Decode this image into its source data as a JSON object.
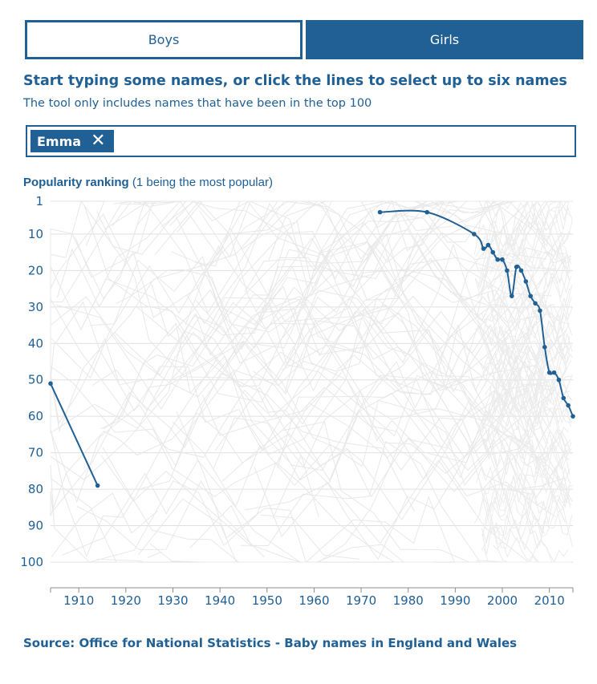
{
  "tabs": {
    "boys": "Boys",
    "girls": "Girls",
    "selected": "Girls"
  },
  "heading": "Start typing some names, or click the lines to select up to six names",
  "subheading": "The tool only includes names that have been in the top 100",
  "search": {
    "selected_name": "Emma",
    "remove_glyph": "✕"
  },
  "colors": {
    "accent": "#206095",
    "background_lines": "#e6e6e6",
    "grid": "#d9d9d9"
  },
  "chart_data": {
    "type": "line",
    "title": "Popularity ranking",
    "subtitle": "(1 being the most popular)",
    "xlabel": "",
    "ylabel": "Popularity ranking",
    "xlim": [
      1904,
      2015
    ],
    "ylim": [
      1,
      100
    ],
    "y_inverted": true,
    "x_ticks": [
      1910,
      1920,
      1930,
      1940,
      1950,
      1960,
      1970,
      1980,
      1990,
      2000,
      2010
    ],
    "y_ticks": [
      1,
      10,
      20,
      30,
      40,
      50,
      60,
      70,
      80,
      90,
      100
    ],
    "series": [
      {
        "name": "Emma",
        "color": "#206095",
        "segments": [
          [
            {
              "x": 1904,
              "y": 51
            },
            {
              "x": 1914,
              "y": 79
            }
          ],
          [
            {
              "x": 1974,
              "y": 4
            },
            {
              "x": 1984,
              "y": 4
            },
            {
              "x": 1994,
              "y": 10
            },
            {
              "x": 1996,
              "y": 14
            },
            {
              "x": 1997,
              "y": 13
            },
            {
              "x": 1998,
              "y": 15
            },
            {
              "x": 1999,
              "y": 17
            },
            {
              "x": 2000,
              "y": 17
            },
            {
              "x": 2001,
              "y": 20
            },
            {
              "x": 2002,
              "y": 27
            },
            {
              "x": 2003,
              "y": 19
            },
            {
              "x": 2004,
              "y": 20
            },
            {
              "x": 2005,
              "y": 23
            },
            {
              "x": 2006,
              "y": 27
            },
            {
              "x": 2007,
              "y": 29
            },
            {
              "x": 2008,
              "y": 31
            },
            {
              "x": 2009,
              "y": 41
            },
            {
              "x": 2010,
              "y": 48
            },
            {
              "x": 2011,
              "y": 48
            },
            {
              "x": 2012,
              "y": 50
            },
            {
              "x": 2013,
              "y": 55
            },
            {
              "x": 2014,
              "y": 57
            },
            {
              "x": 2015,
              "y": 60
            }
          ]
        ]
      }
    ],
    "background_series_note": "all other top-100 girls names drawn as faint grey lines"
  },
  "source": "Source: Office for National Statistics - Baby names in England and Wales"
}
